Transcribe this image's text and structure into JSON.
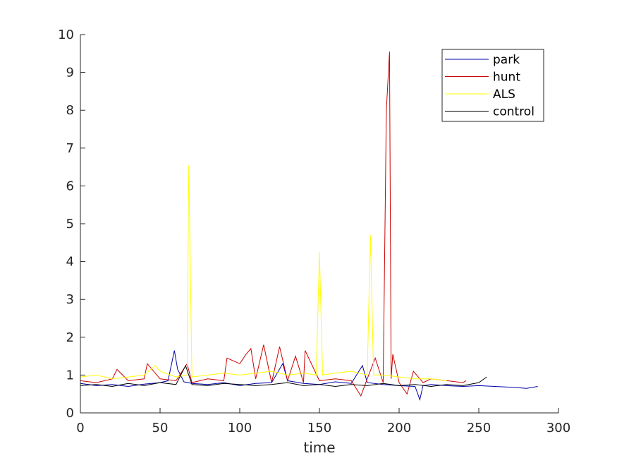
{
  "chart_data": {
    "type": "line",
    "title": "",
    "xlabel": "time",
    "ylabel": "",
    "xlim": [
      0,
      300
    ],
    "ylim": [
      0,
      10
    ],
    "xticks": [
      0,
      50,
      100,
      150,
      200,
      250,
      300
    ],
    "yticks": [
      0,
      1,
      2,
      3,
      4,
      5,
      6,
      7,
      8,
      9,
      10
    ],
    "grid": false,
    "legend_position": "top-right",
    "series": [
      {
        "name": "park",
        "color": "#0000aa",
        "x": [
          0,
          10,
          20,
          30,
          40,
          50,
          55,
          59,
          61,
          65,
          70,
          80,
          90,
          100,
          110,
          120,
          127,
          130,
          140,
          150,
          160,
          170,
          177,
          180,
          190,
          200,
          210,
          213,
          215,
          220,
          230,
          240,
          250,
          260,
          270,
          280,
          287
        ],
        "values": [
          0.78,
          0.72,
          0.75,
          0.7,
          0.76,
          0.8,
          0.85,
          1.65,
          1.15,
          0.82,
          0.78,
          0.75,
          0.8,
          0.72,
          0.78,
          0.8,
          1.3,
          0.85,
          0.78,
          0.75,
          0.82,
          0.78,
          1.25,
          0.8,
          0.75,
          0.72,
          0.7,
          0.35,
          0.72,
          0.75,
          0.72,
          0.7,
          0.72,
          0.7,
          0.68,
          0.65,
          0.7
        ]
      },
      {
        "name": "hunt",
        "color": "#cc0000",
        "x": [
          0,
          10,
          20,
          23,
          30,
          40,
          42,
          50,
          60,
          67,
          70,
          80,
          90,
          92,
          100,
          104,
          107,
          110,
          115,
          120,
          125,
          130,
          135,
          140,
          141,
          150,
          160,
          170,
          176,
          180,
          185,
          190,
          192,
          194,
          195,
          196,
          200,
          205,
          209,
          215,
          220,
          230,
          240,
          242
        ],
        "values": [
          0.85,
          0.8,
          0.9,
          1.15,
          0.85,
          0.9,
          1.3,
          0.9,
          0.85,
          1.3,
          0.8,
          0.9,
          0.85,
          1.45,
          1.3,
          1.55,
          1.7,
          0.9,
          1.8,
          0.8,
          1.75,
          0.85,
          1.5,
          0.8,
          1.65,
          0.85,
          0.9,
          0.85,
          0.45,
          0.9,
          1.45,
          0.8,
          8.0,
          9.55,
          0.9,
          1.55,
          0.8,
          0.5,
          1.1,
          0.8,
          0.9,
          0.85,
          0.8,
          0.85
        ]
      },
      {
        "name": "ALS",
        "color": "#ffff00",
        "x": [
          0,
          10,
          20,
          30,
          40,
          47,
          50,
          60,
          67,
          68,
          70,
          80,
          90,
          100,
          110,
          120,
          130,
          140,
          148,
          150,
          152,
          160,
          170,
          180,
          182,
          184,
          190,
          200,
          210,
          220,
          230
        ],
        "values": [
          0.95,
          1.0,
          0.9,
          0.95,
          1.0,
          1.25,
          1.1,
          0.95,
          1.0,
          6.55,
          0.95,
          1.0,
          1.05,
          1.0,
          1.05,
          1.1,
          1.0,
          1.05,
          1.0,
          4.25,
          1.0,
          1.05,
          1.1,
          1.0,
          4.7,
          1.0,
          1.0,
          0.95,
          0.9,
          0.9,
          0.85
        ]
      },
      {
        "name": "control",
        "color": "#000000",
        "x": [
          0,
          10,
          20,
          30,
          40,
          50,
          60,
          66,
          70,
          80,
          90,
          100,
          110,
          120,
          130,
          140,
          150,
          160,
          170,
          180,
          190,
          200,
          210,
          220,
          230,
          240,
          250,
          255
        ],
        "values": [
          0.72,
          0.75,
          0.7,
          0.78,
          0.72,
          0.8,
          0.75,
          1.25,
          0.75,
          0.72,
          0.78,
          0.75,
          0.72,
          0.75,
          0.8,
          0.72,
          0.75,
          0.7,
          0.75,
          0.72,
          0.78,
          0.72,
          0.75,
          0.7,
          0.75,
          0.72,
          0.8,
          0.95
        ]
      }
    ]
  }
}
